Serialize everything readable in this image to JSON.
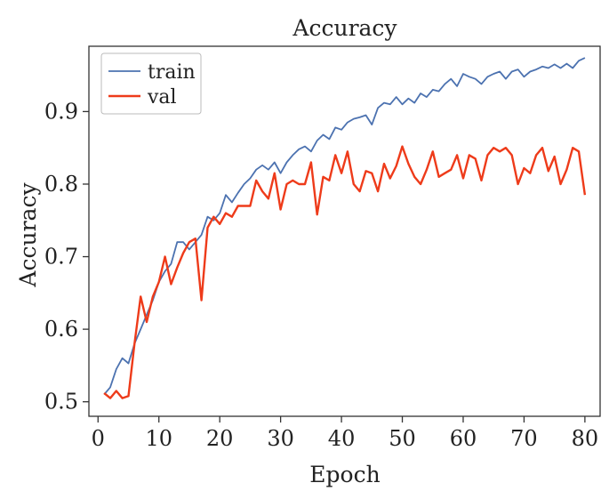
{
  "chart_data": {
    "type": "line",
    "title": "Accuracy",
    "xlabel": "Epoch",
    "ylabel": "Accuracy",
    "xlim": [
      -1.5,
      82.5
    ],
    "ylim": [
      0.48,
      0.99
    ],
    "xticks": [
      0,
      10,
      20,
      30,
      40,
      50,
      60,
      70,
      80
    ],
    "yticks": [
      0.5,
      0.6,
      0.7,
      0.8,
      0.9
    ],
    "ytick_labels": [
      "0.5",
      "0.6",
      "0.7",
      "0.8",
      "0.9"
    ],
    "grid": false,
    "legend": "top-left",
    "series": [
      {
        "name": "train",
        "color": "#4c72b0",
        "x": [
          1,
          2,
          3,
          4,
          5,
          6,
          7,
          8,
          9,
          10,
          11,
          12,
          13,
          14,
          15,
          16,
          17,
          18,
          19,
          20,
          21,
          22,
          23,
          24,
          25,
          26,
          27,
          28,
          29,
          30,
          31,
          32,
          33,
          34,
          35,
          36,
          37,
          38,
          39,
          40,
          41,
          42,
          43,
          44,
          45,
          46,
          47,
          48,
          49,
          50,
          51,
          52,
          53,
          54,
          55,
          56,
          57,
          58,
          59,
          60,
          61,
          62,
          63,
          64,
          65,
          66,
          67,
          68,
          69,
          70,
          71,
          72,
          73,
          74,
          75,
          76,
          77,
          78,
          79,
          80
        ],
        "values": [
          0.51,
          0.52,
          0.545,
          0.56,
          0.553,
          0.58,
          0.6,
          0.62,
          0.64,
          0.665,
          0.68,
          0.69,
          0.72,
          0.72,
          0.71,
          0.72,
          0.73,
          0.755,
          0.75,
          0.76,
          0.785,
          0.775,
          0.788,
          0.8,
          0.808,
          0.82,
          0.826,
          0.82,
          0.83,
          0.815,
          0.83,
          0.84,
          0.848,
          0.852,
          0.845,
          0.86,
          0.868,
          0.862,
          0.878,
          0.875,
          0.885,
          0.89,
          0.892,
          0.895,
          0.882,
          0.905,
          0.912,
          0.91,
          0.92,
          0.91,
          0.918,
          0.912,
          0.925,
          0.92,
          0.93,
          0.928,
          0.938,
          0.945,
          0.935,
          0.952,
          0.948,
          0.945,
          0.938,
          0.948,
          0.952,
          0.955,
          0.945,
          0.955,
          0.958,
          0.948,
          0.955,
          0.958,
          0.962,
          0.96,
          0.965,
          0.96,
          0.966,
          0.96,
          0.97,
          0.974
        ]
      },
      {
        "name": "val",
        "color": "#ee3b1a",
        "x": [
          1,
          2,
          3,
          4,
          5,
          6,
          7,
          8,
          9,
          10,
          11,
          12,
          13,
          14,
          15,
          16,
          17,
          18,
          19,
          20,
          21,
          22,
          23,
          24,
          25,
          26,
          27,
          28,
          29,
          30,
          31,
          32,
          33,
          34,
          35,
          36,
          37,
          38,
          39,
          40,
          41,
          42,
          43,
          44,
          45,
          46,
          47,
          48,
          49,
          50,
          51,
          52,
          53,
          54,
          55,
          56,
          57,
          58,
          59,
          60,
          61,
          62,
          63,
          64,
          65,
          66,
          67,
          68,
          69,
          70,
          71,
          72,
          73,
          74,
          75,
          76,
          77,
          78,
          79,
          80
        ],
        "values": [
          0.512,
          0.505,
          0.515,
          0.505,
          0.508,
          0.58,
          0.645,
          0.61,
          0.645,
          0.665,
          0.7,
          0.662,
          0.685,
          0.705,
          0.72,
          0.725,
          0.64,
          0.74,
          0.755,
          0.745,
          0.76,
          0.755,
          0.77,
          0.77,
          0.77,
          0.805,
          0.79,
          0.78,
          0.815,
          0.765,
          0.8,
          0.805,
          0.8,
          0.8,
          0.83,
          0.758,
          0.81,
          0.805,
          0.84,
          0.815,
          0.845,
          0.8,
          0.79,
          0.818,
          0.815,
          0.79,
          0.828,
          0.808,
          0.825,
          0.852,
          0.828,
          0.81,
          0.8,
          0.82,
          0.845,
          0.81,
          0.815,
          0.82,
          0.84,
          0.808,
          0.84,
          0.835,
          0.805,
          0.84,
          0.85,
          0.845,
          0.85,
          0.84,
          0.8,
          0.822,
          0.815,
          0.84,
          0.85,
          0.818,
          0.838,
          0.8,
          0.82,
          0.85,
          0.845,
          0.785
        ]
      }
    ]
  }
}
